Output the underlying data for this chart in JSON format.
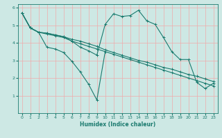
{
  "background_color": "#cde8e4",
  "grid_color": "#f0aaaa",
  "line_color": "#1a7a6e",
  "xlabel": "Humidex (Indice chaleur)",
  "xlim": [
    -0.5,
    23.5
  ],
  "ylim": [
    0,
    6.2
  ],
  "xticks": [
    0,
    1,
    2,
    3,
    4,
    5,
    6,
    7,
    8,
    9,
    10,
    11,
    12,
    13,
    14,
    15,
    16,
    17,
    18,
    19,
    20,
    21,
    22,
    23
  ],
  "yticks": [
    1,
    2,
    3,
    4,
    5,
    6
  ],
  "lines": [
    {
      "x": [
        0,
        1,
        2,
        3,
        4,
        5,
        6,
        7,
        8,
        9,
        10,
        11,
        12,
        13,
        14,
        15,
        16,
        17,
        18,
        19,
        20,
        21,
        22,
        23
      ],
      "y": [
        5.7,
        4.85,
        4.6,
        4.55,
        4.45,
        4.35,
        4.2,
        4.1,
        3.95,
        3.8,
        3.6,
        3.45,
        3.3,
        3.15,
        3.0,
        2.9,
        2.75,
        2.6,
        2.5,
        2.35,
        2.2,
        2.1,
        1.95,
        1.8
      ]
    },
    {
      "x": [
        0,
        1,
        2,
        3,
        4,
        5,
        6,
        7,
        8,
        9,
        10,
        11,
        12,
        13,
        14,
        15,
        16,
        17,
        18,
        19,
        20,
        21,
        22,
        23
      ],
      "y": [
        5.7,
        4.85,
        4.6,
        4.5,
        4.4,
        4.3,
        4.1,
        3.95,
        3.8,
        3.65,
        3.5,
        3.35,
        3.2,
        3.05,
        2.9,
        2.75,
        2.6,
        2.45,
        2.3,
        2.15,
        2.0,
        1.85,
        1.7,
        1.55
      ]
    },
    {
      "x": [
        0,
        1,
        2,
        3,
        4,
        5,
        6,
        7,
        8,
        9,
        10,
        11,
        12,
        13,
        14,
        15,
        16,
        17,
        18,
        19,
        20,
        21,
        22,
        23
      ],
      "y": [
        5.7,
        4.85,
        4.6,
        4.55,
        4.45,
        4.35,
        4.1,
        3.75,
        3.55,
        3.3,
        5.05,
        5.65,
        5.5,
        5.55,
        5.85,
        5.25,
        5.05,
        4.3,
        3.5,
        3.05,
        3.05,
        1.75,
        1.4,
        1.7
      ]
    },
    {
      "x": [
        0,
        1,
        2,
        3,
        4,
        5,
        6,
        7,
        8,
        9,
        10
      ],
      "y": [
        5.7,
        4.85,
        4.6,
        3.75,
        3.65,
        3.45,
        2.95,
        2.35,
        1.65,
        0.75,
        3.5
      ]
    }
  ]
}
